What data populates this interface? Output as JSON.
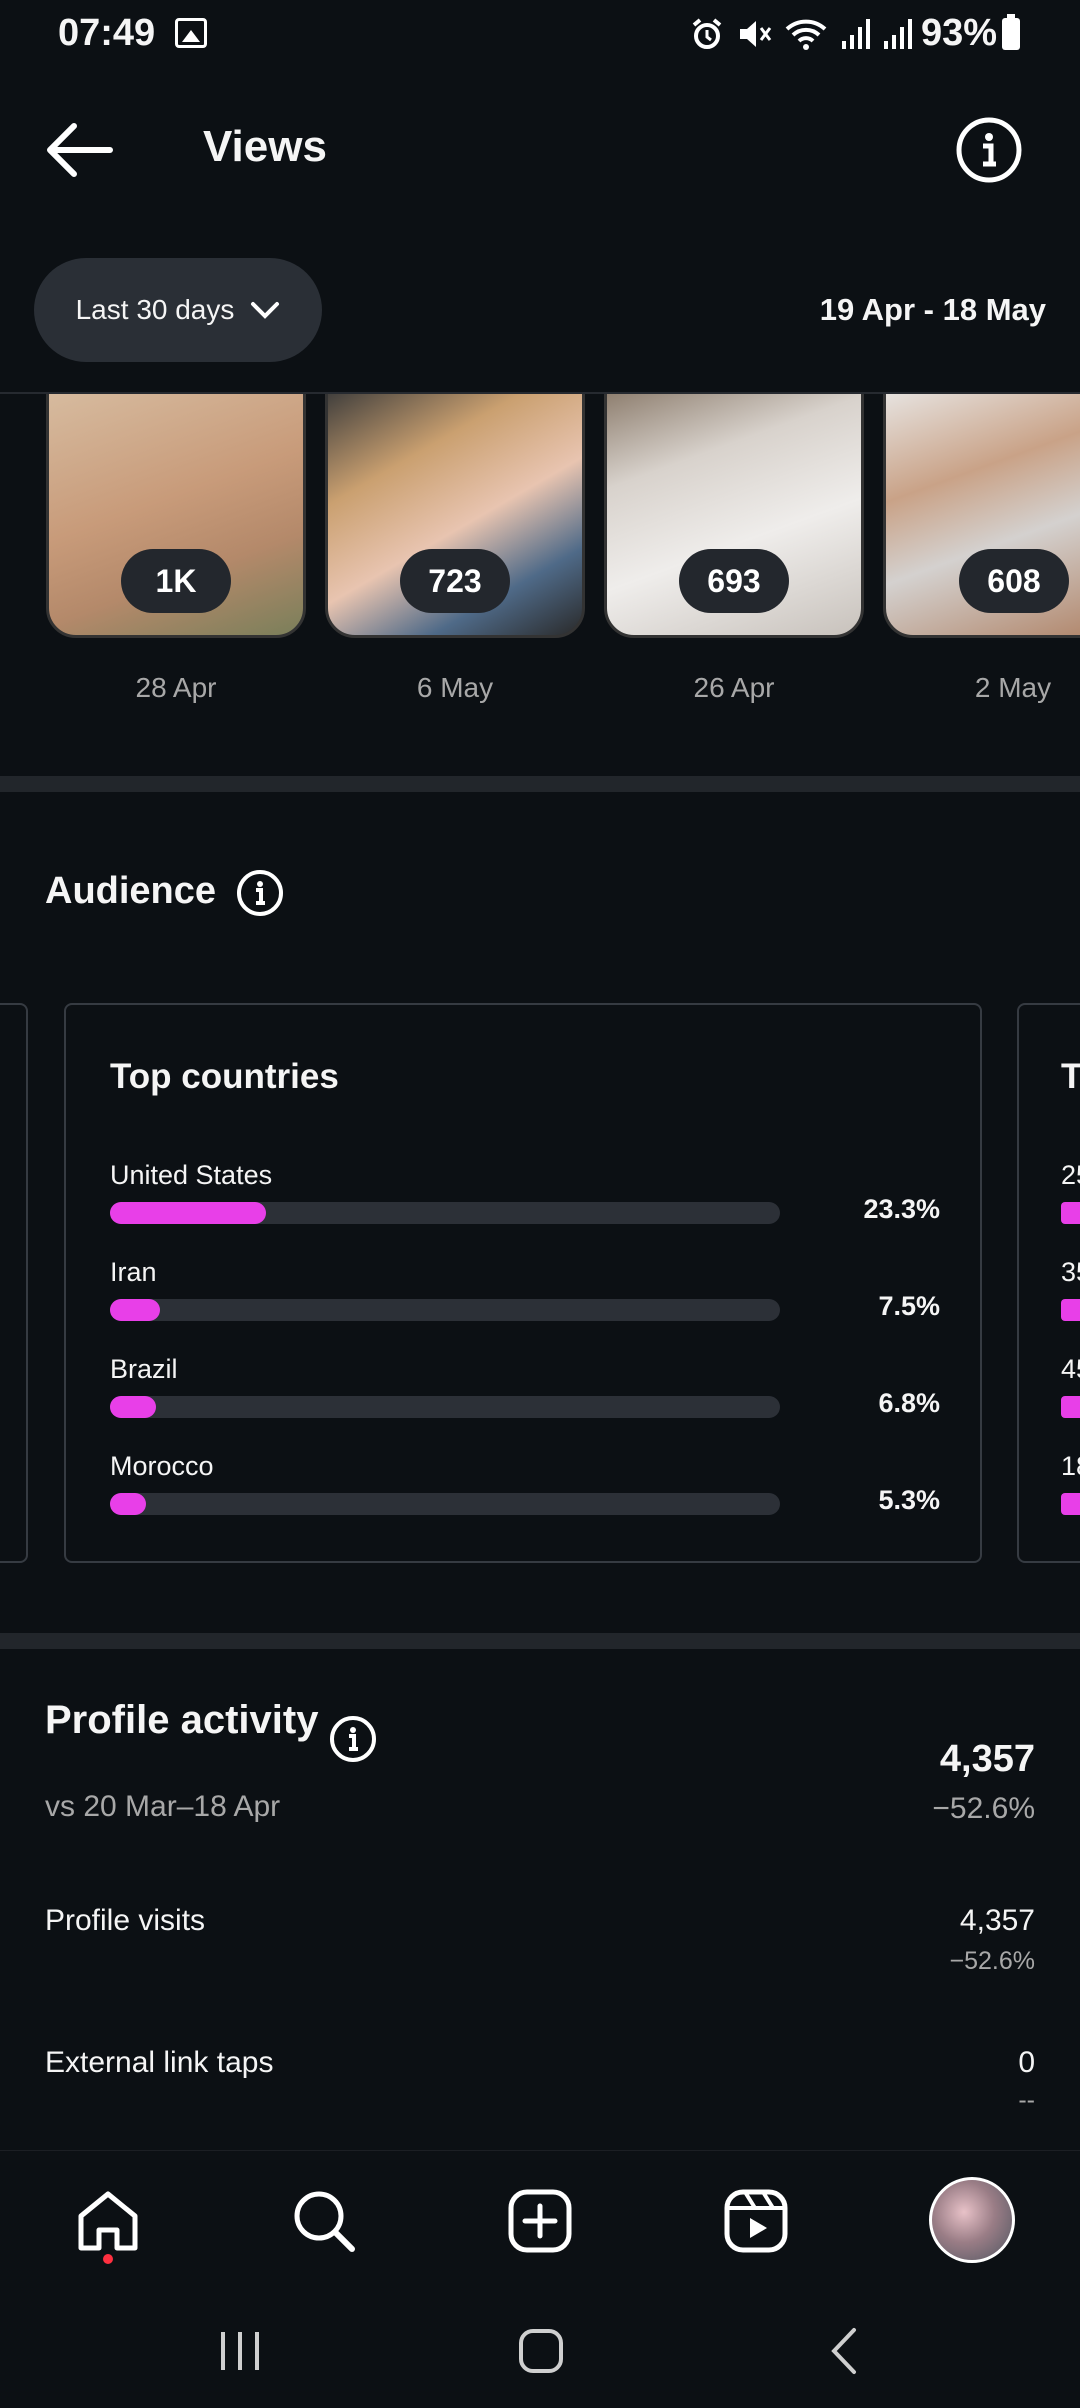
{
  "status_bar": {
    "time": "07:49",
    "battery": "93%"
  },
  "header": {
    "title": "Views"
  },
  "filter": {
    "range_label": "Last 30 days",
    "date_range": "19 Apr - 18 May"
  },
  "thumbnails": [
    {
      "views": "1K",
      "date": "28 Apr"
    },
    {
      "views": "723",
      "date": "6 May"
    },
    {
      "views": "693",
      "date": "26 Apr"
    },
    {
      "views": "608",
      "date": "2 May"
    }
  ],
  "audience": {
    "title": "Audience",
    "top_countries": {
      "title": "Top countries",
      "items": [
        {
          "name": "United States",
          "percent": "23.3%",
          "value": 23.3
        },
        {
          "name": "Iran",
          "percent": "7.5%",
          "value": 7.5
        },
        {
          "name": "Brazil",
          "percent": "6.8%",
          "value": 6.8
        },
        {
          "name": "Morocco",
          "percent": "5.3%",
          "value": 5.3
        }
      ]
    },
    "next_card_peek": {
      "title": "T",
      "labels": [
        "25",
        "35",
        "45",
        "18"
      ]
    }
  },
  "profile_activity": {
    "title": "Profile activity",
    "comparison": "vs 20 Mar–18 Apr",
    "total": "4,357",
    "total_change": "−52.6%",
    "metrics": [
      {
        "label": "Profile visits",
        "value": "4,357",
        "change": "−52.6%"
      },
      {
        "label": "External link taps",
        "value": "0",
        "change": "--"
      }
    ]
  },
  "bottom_nav": [
    "home-icon",
    "search-icon",
    "create-icon",
    "reels-icon",
    "profile-avatar"
  ],
  "colors": {
    "background": "#0c1014",
    "accent_bar": "#e83fe8",
    "pill": "#2a2f36",
    "muted_text": "#a8a8a8"
  }
}
